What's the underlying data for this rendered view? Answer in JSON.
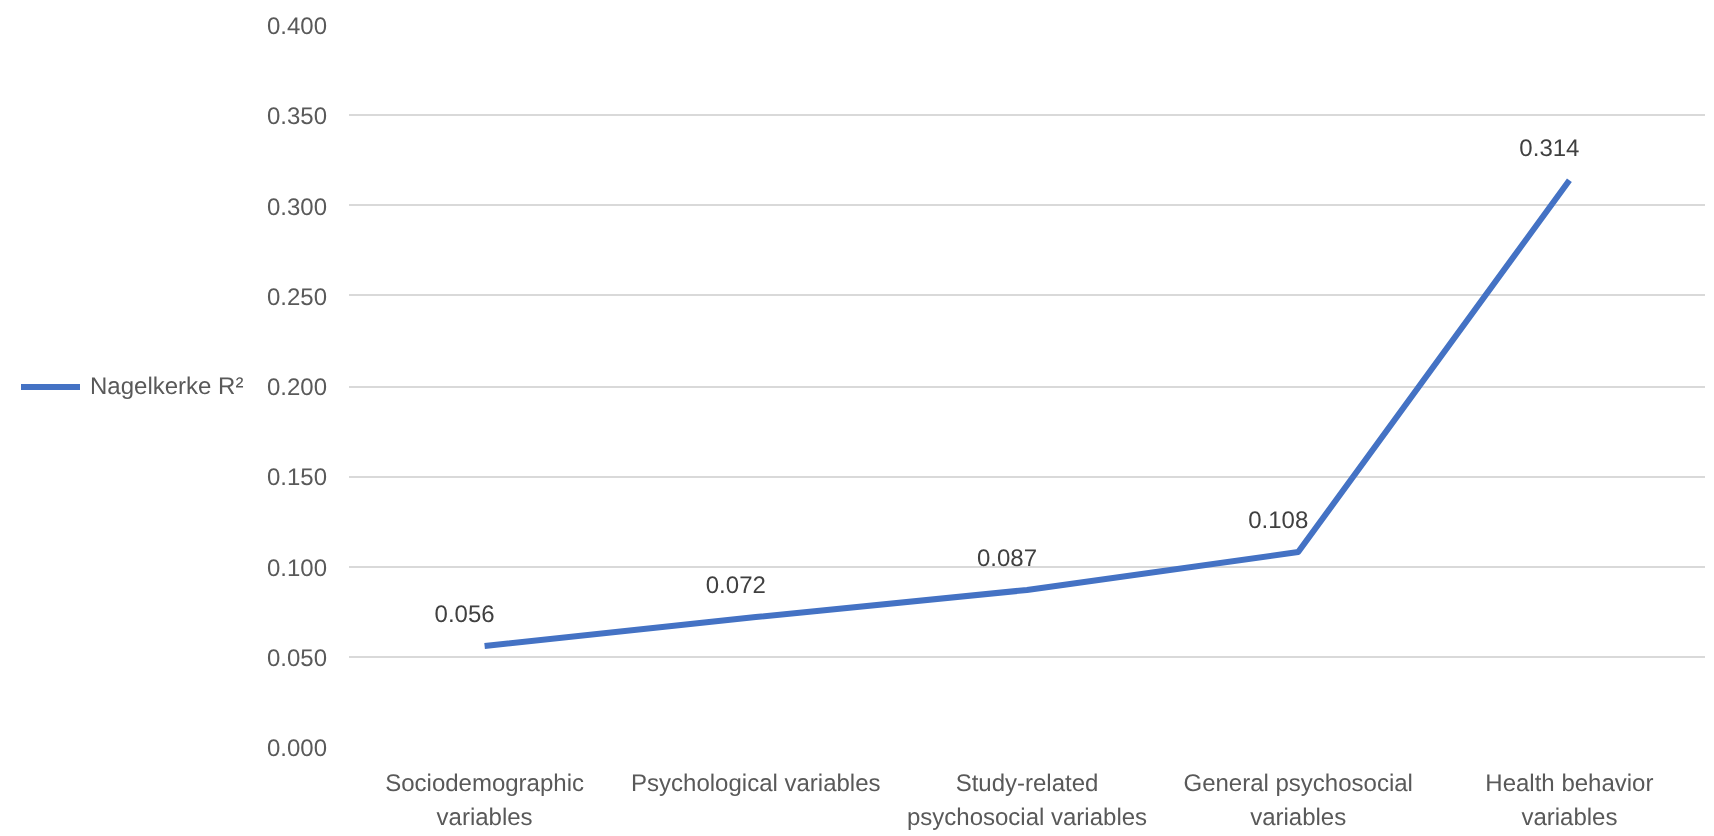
{
  "chart_data": {
    "type": "line",
    "categories": [
      "Sociodemographic variables",
      "Psychological variables",
      "Study-related psychosocial variables",
      "General psychosocial variables",
      "Health behavior variables"
    ],
    "series": [
      {
        "name": "Nagelkerke R²",
        "color": "#4472c4",
        "values": [
          0.056,
          0.072,
          0.087,
          0.108,
          0.314
        ]
      }
    ],
    "ylim": [
      0,
      0.4
    ],
    "yticks": [
      {
        "value": 0,
        "label": "0.000"
      },
      {
        "value": 0.05,
        "label": "0.050"
      },
      {
        "value": 0.1,
        "label": "0.100"
      },
      {
        "value": 0.15,
        "label": "0.150"
      },
      {
        "value": 0.2,
        "label": "0.200"
      },
      {
        "value": 0.25,
        "label": "0.250"
      },
      {
        "value": 0.3,
        "label": "0.300"
      },
      {
        "value": 0.35,
        "label": "0.350"
      },
      {
        "value": 0.4,
        "label": "0.400"
      }
    ],
    "grid": "y",
    "legend": "left",
    "data_labels": true,
    "marker": "none",
    "line_style": "solid"
  }
}
